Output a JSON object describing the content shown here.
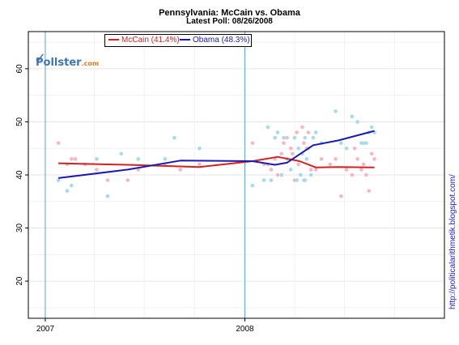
{
  "chart_data": {
    "type": "scatter",
    "title": "Pennsylvania: McCain vs. Obama",
    "subtitle": "Latest Poll: 08/26/2008",
    "x_ticks": [
      "2007",
      "2008"
    ],
    "xlim": [
      "2006-12-01",
      "2008-12-31"
    ],
    "ylim": [
      13,
      67
    ],
    "y_ticks": [
      20,
      30,
      40,
      50,
      60
    ],
    "vertical_markers": [
      "2007-01-01",
      "2008-01-01"
    ],
    "grid": true,
    "legend_position": "top-left",
    "series": [
      {
        "name": "McCain (41.4%)",
        "color": "#d62020",
        "point_color": "#f7b7c2",
        "points": [
          [
            "2007-01-25",
            46
          ],
          [
            "2007-02-10",
            42
          ],
          [
            "2007-02-18",
            43
          ],
          [
            "2007-02-25",
            43
          ],
          [
            "2007-03-15",
            42
          ],
          [
            "2007-04-05",
            41
          ],
          [
            "2007-04-25",
            39
          ],
          [
            "2007-06-01",
            39
          ],
          [
            "2007-06-20",
            41
          ],
          [
            "2007-08-08",
            42
          ],
          [
            "2007-09-05",
            41
          ],
          [
            "2007-10-10",
            42
          ],
          [
            "2008-01-15",
            46
          ],
          [
            "2008-02-05",
            42
          ],
          [
            "2008-02-12",
            42
          ],
          [
            "2008-02-18",
            41
          ],
          [
            "2008-02-25",
            43
          ],
          [
            "2008-03-01",
            40
          ],
          [
            "2008-03-08",
            44
          ],
          [
            "2008-03-12",
            46
          ],
          [
            "2008-03-18",
            47
          ],
          [
            "2008-03-25",
            45
          ],
          [
            "2008-03-28",
            44
          ],
          [
            "2008-04-01",
            39
          ],
          [
            "2008-04-05",
            48
          ],
          [
            "2008-04-08",
            42
          ],
          [
            "2008-04-12",
            40
          ],
          [
            "2008-04-15",
            49
          ],
          [
            "2008-04-18",
            46
          ],
          [
            "2008-04-20",
            39
          ],
          [
            "2008-04-23",
            45
          ],
          [
            "2008-04-26",
            48
          ],
          [
            "2008-05-01",
            41
          ],
          [
            "2008-05-10",
            41
          ],
          [
            "2008-05-20",
            43
          ],
          [
            "2008-06-05",
            42
          ],
          [
            "2008-06-15",
            43
          ],
          [
            "2008-06-25",
            36
          ],
          [
            "2008-07-05",
            41
          ],
          [
            "2008-07-15",
            40
          ],
          [
            "2008-07-20",
            45
          ],
          [
            "2008-07-25",
            43
          ],
          [
            "2008-08-01",
            41
          ],
          [
            "2008-08-05",
            42
          ],
          [
            "2008-08-10",
            40
          ],
          [
            "2008-08-15",
            37
          ],
          [
            "2008-08-20",
            44
          ],
          [
            "2008-08-25",
            43
          ]
        ],
        "trend": [
          [
            "2007-01-25",
            42.2
          ],
          [
            "2007-06-01",
            41.9
          ],
          [
            "2007-10-10",
            41.5
          ],
          [
            "2008-01-15",
            42.6
          ],
          [
            "2008-03-01",
            43.4
          ],
          [
            "2008-04-10",
            42.6
          ],
          [
            "2008-05-10",
            41.4
          ],
          [
            "2008-06-20",
            41.5
          ],
          [
            "2008-08-25",
            41.4
          ]
        ]
      },
      {
        "name": "Obama (48.3%)",
        "color": "#1a1ab0",
        "point_color": "#a6dbeb",
        "points": [
          [
            "2007-01-25",
            39
          ],
          [
            "2007-02-10",
            37
          ],
          [
            "2007-02-18",
            38
          ],
          [
            "2007-04-05",
            43
          ],
          [
            "2007-04-25",
            36
          ],
          [
            "2007-05-20",
            44
          ],
          [
            "2007-06-20",
            43
          ],
          [
            "2007-08-08",
            43
          ],
          [
            "2007-08-25",
            47
          ],
          [
            "2007-10-10",
            45
          ],
          [
            "2008-01-15",
            38
          ],
          [
            "2008-02-05",
            39
          ],
          [
            "2008-02-12",
            49
          ],
          [
            "2008-02-18",
            39
          ],
          [
            "2008-02-25",
            47
          ],
          [
            "2008-03-01",
            48
          ],
          [
            "2008-03-08",
            40
          ],
          [
            "2008-03-12",
            47
          ],
          [
            "2008-03-18",
            43
          ],
          [
            "2008-03-25",
            41
          ],
          [
            "2008-04-01",
            47
          ],
          [
            "2008-04-05",
            39
          ],
          [
            "2008-04-08",
            45
          ],
          [
            "2008-04-12",
            40
          ],
          [
            "2008-04-15",
            44
          ],
          [
            "2008-04-18",
            39
          ],
          [
            "2008-04-20",
            47
          ],
          [
            "2008-04-23",
            43
          ],
          [
            "2008-04-26",
            45
          ],
          [
            "2008-05-01",
            40
          ],
          [
            "2008-05-05",
            47
          ],
          [
            "2008-05-10",
            48
          ],
          [
            "2008-05-20",
            46
          ],
          [
            "2008-06-15",
            52
          ],
          [
            "2008-06-25",
            46
          ],
          [
            "2008-07-05",
            45
          ],
          [
            "2008-07-15",
            51
          ],
          [
            "2008-07-25",
            50
          ],
          [
            "2008-08-01",
            46
          ],
          [
            "2008-08-05",
            46
          ],
          [
            "2008-08-10",
            46
          ],
          [
            "2008-08-15",
            48
          ],
          [
            "2008-08-20",
            49
          ],
          [
            "2008-08-25",
            48
          ]
        ],
        "trend": [
          [
            "2007-01-25",
            39.4
          ],
          [
            "2007-06-01",
            41.0
          ],
          [
            "2007-09-05",
            42.7
          ],
          [
            "2008-01-15",
            42.6
          ],
          [
            "2008-02-25",
            41.9
          ],
          [
            "2008-03-18",
            42.3
          ],
          [
            "2008-05-05",
            45.6
          ],
          [
            "2008-06-20",
            46.5
          ],
          [
            "2008-08-25",
            48.3
          ]
        ]
      }
    ]
  },
  "logo": {
    "text": "Pollster",
    "suffix": ".com"
  },
  "side_credit": "http://politicalarithmetik.blogspot.com/"
}
